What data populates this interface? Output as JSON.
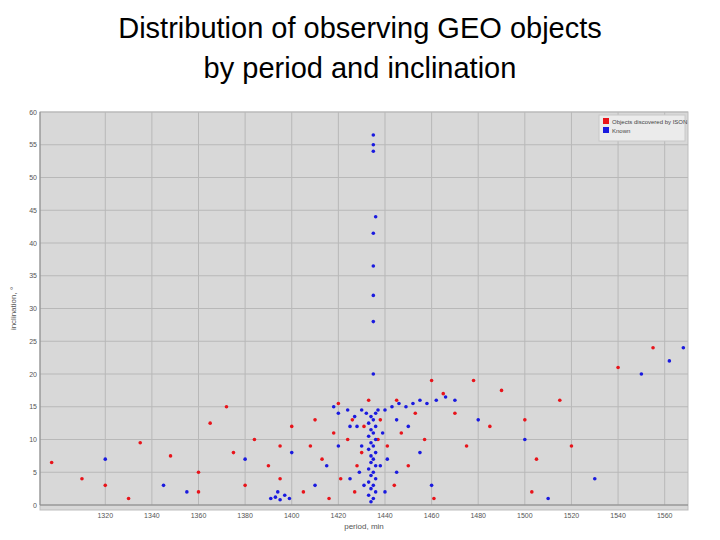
{
  "chart_data": {
    "type": "scatter",
    "title": "Distribution of observing GEO objects\nby period and inclination",
    "x_label": "period, min",
    "y_label": "inclination, °",
    "xlim": [
      1292,
      1570
    ],
    "xticks": [
      1320,
      1340,
      1360,
      1380,
      1400,
      1420,
      1440,
      1460,
      1480,
      1500,
      1520,
      1540,
      1560
    ],
    "ylim": [
      0,
      60
    ],
    "yticks": [
      0,
      5,
      10,
      15,
      20,
      25,
      30,
      35,
      40,
      45,
      50,
      55,
      60
    ],
    "grid": true,
    "legend": "top-right",
    "series": [
      {
        "name": "Objects discovered by ISON",
        "color": "#e8141b",
        "marker": "circle",
        "x": [
          1297,
          1310,
          1335,
          1348,
          1365,
          1372,
          1380,
          1384,
          1390,
          1395,
          1400,
          1405,
          1410,
          1413,
          1418,
          1421,
          1424,
          1426,
          1428,
          1430,
          1431,
          1438,
          1441,
          1444,
          1447,
          1450,
          1453,
          1457,
          1461,
          1465,
          1470,
          1478,
          1485,
          1490,
          1500,
          1503,
          1515,
          1520,
          1540,
          1555,
          1320,
          1330,
          1360,
          1375,
          1395,
          1408,
          1416,
          1433,
          1437,
          1427,
          1420,
          1445,
          1460,
          1475,
          1505,
          1360
        ],
        "values": [
          6.5,
          4,
          9.5,
          7.5,
          12.5,
          15,
          3,
          10,
          6,
          9,
          12,
          2,
          13,
          7,
          11,
          4,
          10,
          13,
          6,
          8,
          12,
          13,
          9,
          3,
          11,
          6,
          14,
          10,
          1,
          17,
          14,
          19,
          12,
          17.5,
          13,
          2,
          16,
          9,
          21,
          24,
          3,
          1,
          5,
          8,
          4,
          9,
          1,
          16,
          10,
          2,
          15.5,
          16,
          19,
          9,
          7,
          2
        ]
      },
      {
        "name": "Known",
        "color": "#1a1adf",
        "marker": "circle",
        "x": [
          1434,
          1435,
          1433,
          1436,
          1434,
          1435,
          1433,
          1436,
          1434,
          1435,
          1433,
          1436,
          1434,
          1435,
          1434,
          1436,
          1433,
          1435,
          1434,
          1436,
          1433,
          1435,
          1434,
          1436,
          1433,
          1435,
          1434,
          1432,
          1437,
          1436,
          1431,
          1438,
          1430,
          1439,
          1429,
          1440,
          1428,
          1441,
          1435,
          1435,
          1435,
          1435,
          1435,
          1436,
          1435,
          1435,
          1435,
          1420,
          1424,
          1427,
          1430,
          1440,
          1443,
          1446,
          1449,
          1452,
          1455,
          1458,
          1462,
          1466,
          1470,
          1445,
          1450,
          1425,
          1418,
          1391,
          1393,
          1395,
          1397,
          1399,
          1394,
          1320,
          1400,
          1410,
          1415,
          1420,
          1425,
          1445,
          1455,
          1460,
          1480,
          1500,
          1510,
          1530,
          1550,
          1562,
          1568,
          1345,
          1380,
          1355
        ],
        "values": [
          0.5,
          1,
          1.5,
          2,
          2.5,
          3,
          3.5,
          4,
          4.5,
          5,
          5.5,
          6,
          6.5,
          7,
          7.5,
          8,
          8.5,
          9,
          9.5,
          10,
          10.5,
          11,
          11.5,
          12,
          12.5,
          13,
          13.5,
          14,
          14.5,
          14,
          3,
          6,
          9,
          11,
          5,
          2,
          12,
          7,
          20,
          28,
          32,
          36.5,
          41.5,
          44,
          54,
          55,
          56.5,
          14,
          14.5,
          13.5,
          14.5,
          14.5,
          15,
          15.5,
          15,
          15.5,
          16,
          15.5,
          16,
          16.5,
          16,
          13,
          12,
          12,
          15,
          1,
          1.2,
          0.8,
          1.5,
          1,
          2,
          7,
          8,
          3,
          6,
          9,
          4,
          5,
          8,
          3,
          13,
          10,
          1,
          4,
          20,
          22,
          24,
          3,
          7,
          2
        ]
      }
    ]
  }
}
